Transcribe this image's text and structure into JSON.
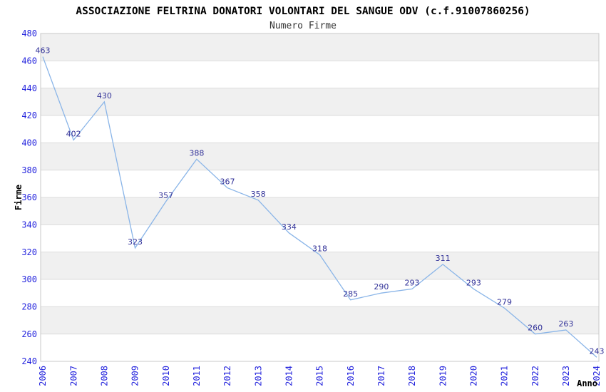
{
  "title": "ASSOCIAZIONE FELTRINA DONATORI VOLONTARI DEL SANGUE ODV (c.f.91007860256)",
  "subtitle": "Numero Firme",
  "chart_data": {
    "type": "line",
    "x": [
      2006,
      2007,
      2008,
      2009,
      2010,
      2011,
      2012,
      2013,
      2014,
      2015,
      2016,
      2017,
      2018,
      2019,
      2020,
      2021,
      2022,
      2023,
      2024
    ],
    "values": [
      463,
      402,
      430,
      323,
      357,
      388,
      367,
      358,
      334,
      318,
      285,
      290,
      293,
      311,
      293,
      279,
      260,
      263,
      243
    ],
    "xlabel": "Anno",
    "ylabel": "Firme",
    "ylim": [
      240,
      480
    ],
    "ytick_step": 20,
    "xtick_rotation": -90,
    "legend": "none",
    "grid": "horizontal",
    "banded_background": true,
    "data_labels_visible": true,
    "colors": {
      "line": "#8ab5e8",
      "data_label": "#333399",
      "tick_label": "#2424dd",
      "axis_title": "#000000",
      "title": "#000000",
      "subtitle": "#333333",
      "band": "#f0f0f0",
      "gridline": "#dcdcdc",
      "border": "#c8c8c8",
      "background": "#ffffff"
    }
  }
}
